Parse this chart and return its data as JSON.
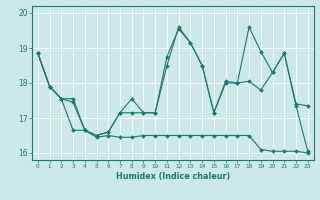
{
  "xlabel": "Humidex (Indice chaleur)",
  "bg_color": "#cce8e8",
  "line_color": "#1a7a6e",
  "xlim": [
    -0.5,
    23.5
  ],
  "ylim": [
    15.8,
    20.2
  ],
  "xticks": [
    0,
    1,
    2,
    3,
    4,
    5,
    6,
    7,
    8,
    9,
    10,
    11,
    12,
    13,
    14,
    15,
    16,
    17,
    18,
    19,
    20,
    21,
    22,
    23
  ],
  "yticks": [
    16,
    17,
    18,
    19,
    20
  ],
  "line1_x": [
    0,
    1,
    2,
    3,
    4,
    5,
    6,
    7,
    8,
    9,
    10,
    11,
    12,
    13,
    14,
    15,
    16,
    17,
    18,
    19,
    20,
    21,
    22,
    23
  ],
  "line1_y": [
    18.85,
    17.9,
    17.55,
    17.55,
    16.65,
    16.5,
    16.6,
    17.15,
    17.55,
    17.15,
    17.15,
    18.5,
    19.6,
    19.15,
    18.5,
    17.15,
    18.05,
    18.0,
    19.6,
    18.9,
    18.3,
    18.85,
    17.35,
    16.05
  ],
  "line2_x": [
    0,
    1,
    2,
    3,
    4,
    5,
    6,
    7,
    8,
    9,
    10,
    11,
    12,
    13,
    14,
    15,
    16,
    17,
    18,
    19,
    20,
    21,
    22,
    23
  ],
  "line2_y": [
    18.85,
    17.9,
    17.55,
    17.45,
    16.65,
    16.5,
    16.6,
    17.15,
    17.15,
    17.15,
    17.15,
    18.75,
    19.55,
    19.15,
    18.5,
    17.15,
    18.0,
    18.0,
    18.05,
    17.8,
    18.3,
    18.85,
    17.4,
    17.35
  ],
  "line3_x": [
    0,
    1,
    2,
    3,
    4,
    5,
    6,
    7,
    8,
    9,
    10,
    11,
    12,
    13,
    14,
    15,
    16,
    17,
    18,
    19,
    20,
    21,
    22,
    23
  ],
  "line3_y": [
    18.85,
    17.9,
    17.55,
    16.65,
    16.65,
    16.45,
    16.5,
    16.45,
    16.45,
    16.5,
    16.5,
    16.5,
    16.5,
    16.5,
    16.5,
    16.5,
    16.5,
    16.5,
    16.5,
    16.1,
    16.05,
    16.05,
    16.05,
    16.0
  ]
}
